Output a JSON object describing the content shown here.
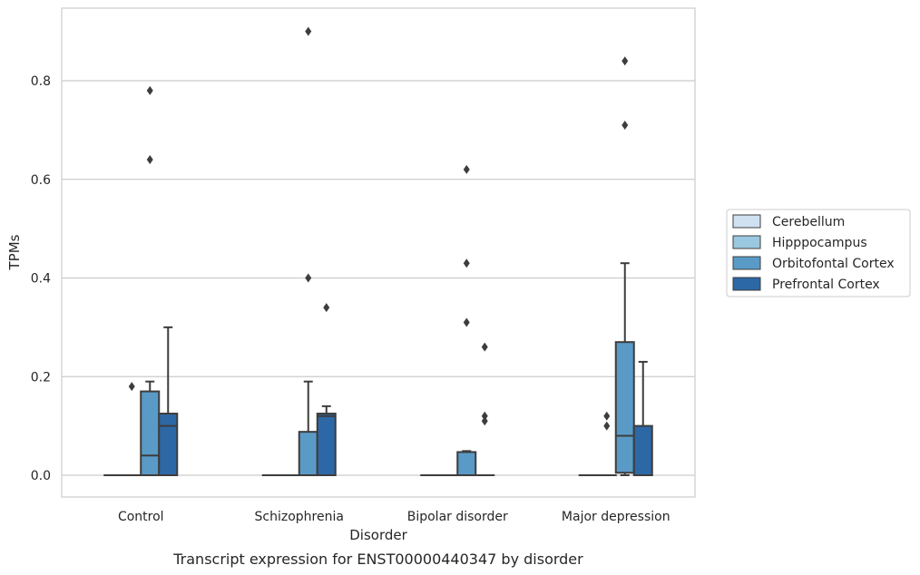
{
  "chart_data": {
    "type": "box",
    "caption": "Transcript expression for ENST00000440347 by disorder",
    "xlabel": "Disorder",
    "ylabel": "TPMs",
    "ylim": [
      -0.045,
      0.95
    ],
    "yticks": [
      0.0,
      0.2,
      0.4,
      0.6,
      0.8
    ],
    "ytick_labels": [
      "0.0",
      "0.2",
      "0.4",
      "0.6",
      "0.8"
    ],
    "grid": "horizontal",
    "legend_position": "right",
    "categories": [
      "Control",
      "Schizophrenia",
      "Bipolar disorder",
      "Major depression"
    ],
    "series": [
      {
        "name": "Cerebellum",
        "color": "#d0e1f2",
        "boxes": [
          {
            "whislo": 0,
            "q1": 0,
            "med": 0,
            "q3": 0,
            "whishi": 0,
            "fliers": []
          },
          {
            "whislo": 0,
            "q1": 0,
            "med": 0,
            "q3": 0,
            "whishi": 0,
            "fliers": []
          },
          {
            "whislo": 0,
            "q1": 0,
            "med": 0,
            "q3": 0,
            "whishi": 0,
            "fliers": []
          },
          {
            "whislo": 0,
            "q1": 0,
            "med": 0,
            "q3": 0,
            "whishi": 0,
            "fliers": []
          }
        ]
      },
      {
        "name": "Hipppocampus",
        "color": "#9ac8e0",
        "boxes": [
          {
            "whislo": 0,
            "q1": 0,
            "med": 0,
            "q3": 0,
            "whishi": 0,
            "fliers": [
              0.18
            ]
          },
          {
            "whislo": 0,
            "q1": 0,
            "med": 0,
            "q3": 0,
            "whishi": 0,
            "fliers": []
          },
          {
            "whislo": 0,
            "q1": 0,
            "med": 0,
            "q3": 0,
            "whishi": 0,
            "fliers": []
          },
          {
            "whislo": 0,
            "q1": 0,
            "med": 0,
            "q3": 0,
            "whishi": 0,
            "fliers": [
              0.1,
              0.12
            ]
          }
        ]
      },
      {
        "name": "Orbitofontal Cortex",
        "color": "#5a9ac6",
        "boxes": [
          {
            "whislo": 0,
            "q1": 0,
            "med": 0.04,
            "q3": 0.17,
            "whishi": 0.19,
            "fliers": [
              0.64,
              0.78
            ]
          },
          {
            "whislo": 0,
            "q1": 0,
            "med": 0,
            "q3": 0.088,
            "whishi": 0.19,
            "fliers": [
              0.4,
              0.9
            ]
          },
          {
            "whislo": 0,
            "q1": 0,
            "med": 0,
            "q3": 0.047,
            "whishi": 0.049,
            "fliers": [
              0.31,
              0.43,
              0.62
            ]
          },
          {
            "whislo": 0,
            "q1": 0.005,
            "med": 0.08,
            "q3": 0.27,
            "whishi": 0.43,
            "fliers": [
              0.71,
              0.84
            ]
          }
        ]
      },
      {
        "name": "Prefrontal Cortex",
        "color": "#2d68a6",
        "boxes": [
          {
            "whislo": 0,
            "q1": 0,
            "med": 0.1,
            "q3": 0.125,
            "whishi": 0.3,
            "fliers": []
          },
          {
            "whislo": 0,
            "q1": 0,
            "med": 0.12,
            "q3": 0.125,
            "whishi": 0.14,
            "fliers": [
              0.34
            ]
          },
          {
            "whislo": 0,
            "q1": 0,
            "med": 0,
            "q3": 0,
            "whishi": 0,
            "fliers": [
              0.11,
              0.12,
              0.26
            ]
          },
          {
            "whislo": 0,
            "q1": 0,
            "med": 0,
            "q3": 0.1,
            "whishi": 0.23,
            "fliers": []
          }
        ]
      }
    ]
  }
}
